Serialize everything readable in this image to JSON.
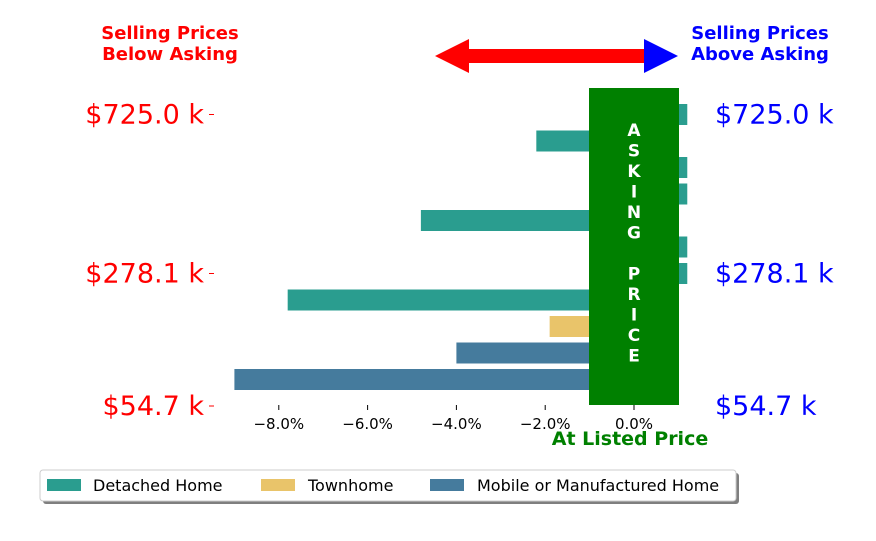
{
  "chart_data": {
    "type": "bar",
    "orientation": "horizontal",
    "x_axis": {
      "range": [
        -9.0,
        1.2
      ],
      "ticks": [
        -8.0,
        -6.0,
        -4.0,
        -2.0,
        0.0
      ],
      "tick_labels": [
        "−8.0%",
        "−6.0%",
        "−4.0%",
        "−2.0%",
        "0.0%"
      ]
    },
    "y_tick_labels": [
      "$725.0 k",
      "$278.1 k",
      "$54.7 k"
    ],
    "y_tick_rows": [
      0,
      6,
      11
    ],
    "bars": [
      {
        "series": "Detached Home",
        "value": 1.2
      },
      {
        "series": "Detached Home",
        "value": -2.2
      },
      {
        "series": "Detached Home",
        "value": 1.2
      },
      {
        "series": "Detached Home",
        "value": 1.2
      },
      {
        "series": "Detached Home",
        "value": -4.8
      },
      {
        "series": "Detached Home",
        "value": 1.2
      },
      {
        "series": "Detached Home",
        "value": 1.2
      },
      {
        "series": "Detached Home",
        "value": -7.8
      },
      {
        "series": "Townhome",
        "value": -1.9
      },
      {
        "series": "Mobile or Manufactured Home",
        "value": -4.0
      },
      {
        "series": "Mobile or Manufactured Home",
        "value": -9.0
      }
    ],
    "series": [
      {
        "name": "Detached Home",
        "color": "#2a9d8f"
      },
      {
        "name": "Townhome",
        "color": "#e9c46a"
      },
      {
        "name": "Mobile or Manufactured Home",
        "color": "#457b9d"
      }
    ],
    "legend_position": "bottom",
    "grid": false
  },
  "annotations": {
    "left_header": [
      "Selling Prices",
      "Below Asking"
    ],
    "right_header": [
      "Selling Prices",
      "Above Asking"
    ],
    "asking_box_letters": [
      "A",
      "S",
      "K",
      "I",
      "N",
      "G",
      "",
      "P",
      "R",
      "I",
      "C",
      "E"
    ],
    "at_listed_label": "At Listed Price"
  },
  "colors": {
    "below": "#ff0000",
    "above": "#0000ff",
    "asking_box": "#008000",
    "arrow": "#ff0000",
    "arrow_right_head": "#0000ff"
  }
}
